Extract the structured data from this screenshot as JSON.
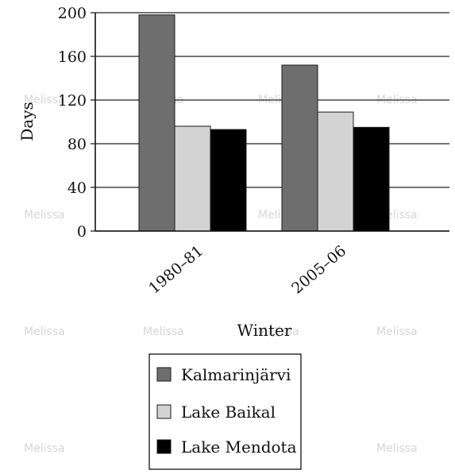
{
  "watermark": "Melissa",
  "chart_data": {
    "type": "bar",
    "categories": [
      "1980–81",
      "2005–06"
    ],
    "series": [
      {
        "name": "Kalmarinjärvi",
        "values": [
          198,
          152
        ],
        "color": "#6e6e6e"
      },
      {
        "name": "Lake Baikal",
        "values": [
          96,
          109
        ],
        "color": "#d3d3d3"
      },
      {
        "name": "Lake Mendota",
        "values": [
          93,
          95
        ],
        "color": "#000000"
      }
    ],
    "xlabel": "Winter",
    "ylabel": "Days",
    "ylim": [
      0,
      200
    ],
    "yticks": [
      0,
      40,
      80,
      120,
      160,
      200
    ],
    "grid": true,
    "legend_position": "bottom"
  }
}
